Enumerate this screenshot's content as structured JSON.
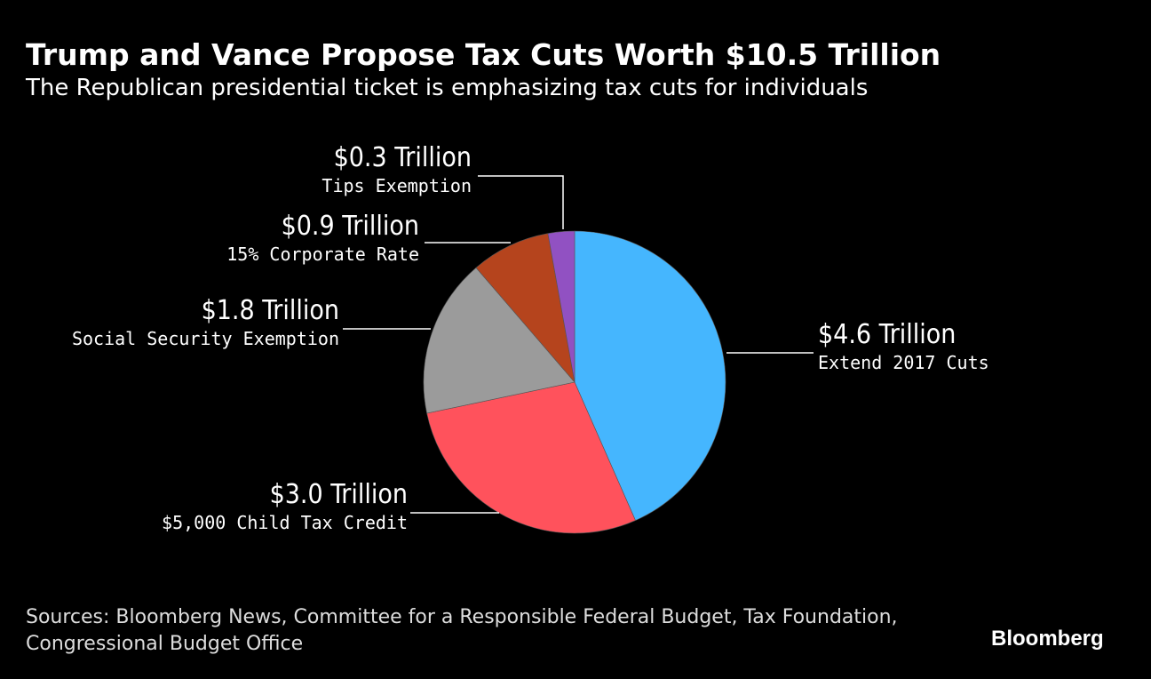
{
  "title": "Trump and Vance Propose Tax Cuts Worth $10.5 Trillion",
  "subtitle": "The Republican presidential ticket is emphasizing tax cuts for individuals",
  "source": "Sources: Bloomberg News, Committee for a Responsible Federal Budget, Tax Foundation, Congressional Budget Office",
  "logo": "Bloomberg",
  "chart_data": {
    "type": "pie",
    "unit": "Trillion USD",
    "slices": [
      {
        "label": "Extend 2017 Cuts",
        "value": 4.6,
        "value_label": "$4.6 Trillion",
        "color": "#45b6fe"
      },
      {
        "label": "$5,000 Child Tax Credit",
        "value": 3.0,
        "value_label": "$3.0 Trillion",
        "color": "#ff525c"
      },
      {
        "label": "Social Security Exemption",
        "value": 1.8,
        "value_label": "$1.8 Trillion",
        "color": "#9b9b9b"
      },
      {
        "label": "15% Corporate Rate",
        "value": 0.9,
        "value_label": "$0.9 Trillion",
        "color": "#b5441d"
      },
      {
        "label": "Tips Exemption",
        "value": 0.3,
        "value_label": "$0.3 Trillion",
        "color": "#9151c2"
      }
    ]
  }
}
